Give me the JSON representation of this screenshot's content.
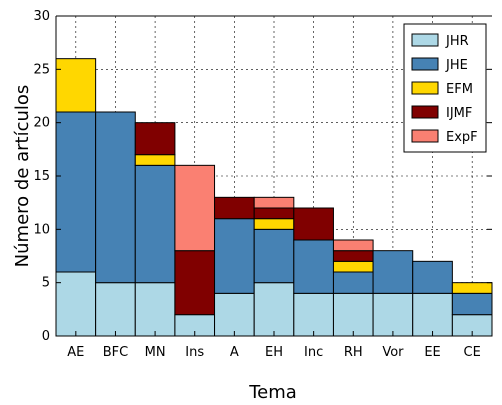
{
  "chart_data": {
    "type": "bar",
    "stacked": true,
    "xlabel": "Tema",
    "ylabel": "Número de artículos",
    "ylim": [
      0,
      30
    ],
    "yticks": [
      0,
      5,
      10,
      15,
      20,
      25,
      30
    ],
    "grid": true,
    "legend_position": "top-right",
    "categories": [
      "AE",
      "BFC",
      "MN",
      "Ins",
      "A",
      "EH",
      "Inc",
      "RH",
      "Vor",
      "EE",
      "CE"
    ],
    "series": [
      {
        "name": "JHR",
        "color": "#add8e6",
        "values": [
          6,
          5,
          5,
          2,
          4,
          5,
          4,
          4,
          4,
          4,
          2
        ]
      },
      {
        "name": "JHE",
        "color": "#4682b4",
        "values": [
          15,
          16,
          11,
          0,
          7,
          5,
          5,
          2,
          4,
          3,
          2
        ]
      },
      {
        "name": "EFM",
        "color": "#ffd700",
        "values": [
          5,
          0,
          1,
          0,
          0,
          1,
          0,
          1,
          0,
          0,
          1
        ]
      },
      {
        "name": "IJMF",
        "color": "#800000",
        "values": [
          0,
          0,
          3,
          6,
          2,
          1,
          3,
          1,
          0,
          0,
          0
        ]
      },
      {
        "name": "ExpF",
        "color": "#fa8072",
        "values": [
          0,
          0,
          0,
          8,
          0,
          1,
          0,
          1,
          0,
          0,
          0
        ]
      }
    ]
  }
}
